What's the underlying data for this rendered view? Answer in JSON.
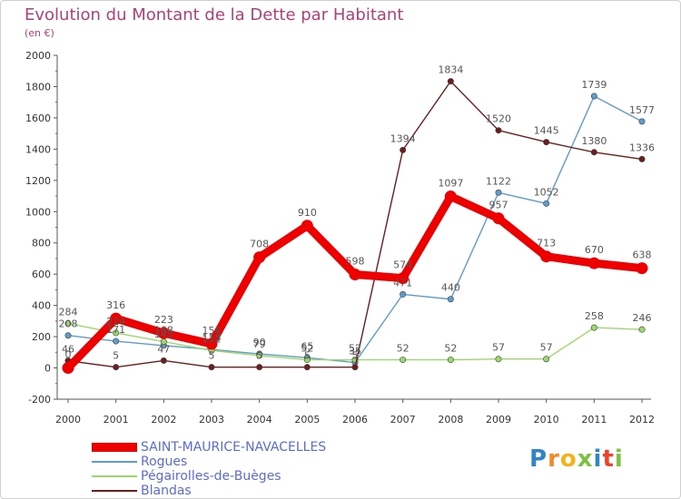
{
  "header": {
    "title": "Evolution du Montant de la Dette par Habitant",
    "subtitle": "(en €)"
  },
  "chart_data": {
    "type": "line",
    "x": [
      2000,
      2001,
      2002,
      2003,
      2004,
      2005,
      2006,
      2007,
      2008,
      2009,
      2010,
      2011,
      2012
    ],
    "ylim": [
      -200,
      2000
    ],
    "yticks": [
      -200,
      0,
      200,
      400,
      600,
      800,
      1000,
      1200,
      1400,
      1600,
      1800,
      2000
    ],
    "grid": false,
    "legend_position": "bottom-left",
    "series": [
      {
        "name": "SAINT-MAURICE-NAVACELLES",
        "color": "#ee0000",
        "values": [
          0,
          316,
          223,
          154,
          708,
          910,
          598,
          574,
          1097,
          957,
          713,
          670,
          638
        ],
        "labels": [
          "0",
          "316",
          "223",
          "154",
          "708",
          "910",
          "598",
          "574",
          "1097",
          "957",
          "713",
          "670",
          "638"
        ]
      },
      {
        "name": "Rogues",
        "color": "#5e9ccc",
        "values": [
          208,
          171,
          143,
          118,
          90,
          65,
          35,
          471,
          440,
          1122,
          1052,
          1739,
          1577
        ],
        "labels": [
          "208",
          "171",
          "143",
          "118",
          "90",
          "65",
          "35",
          "471",
          "440",
          "1122",
          "1052",
          "1739",
          "1577"
        ]
      },
      {
        "name": "Pégairolles-de-Buèges",
        "color": "#9bd96b",
        "values": [
          284,
          224,
          168,
          112,
          79,
          52,
          52,
          52,
          52,
          57,
          57,
          258,
          246
        ],
        "labels": [
          "284",
          "224",
          "168",
          "112",
          "79",
          "52",
          "52",
          "52",
          "52",
          "57",
          "57",
          "258",
          "246"
        ]
      },
      {
        "name": "Blandas",
        "color": "#6d1d1d",
        "values": [
          46,
          5,
          47,
          5,
          5,
          5,
          5,
          1394,
          1834,
          1520,
          1445,
          1380,
          1336
        ],
        "labels": [
          "46",
          "5",
          "47",
          "5",
          "5",
          "5",
          "5",
          "1394",
          "1834",
          "1520",
          "1445",
          "1380",
          "1336"
        ]
      }
    ]
  },
  "branding": {
    "logo_letters": [
      "P",
      "r",
      "o",
      "x",
      "i",
      "t",
      "i"
    ],
    "logo_colors": [
      "#2e86c9",
      "#f08a24",
      "#f5b21b",
      "#7cc242",
      "#2e86c9",
      "#e8452c",
      "#7cc242"
    ]
  }
}
